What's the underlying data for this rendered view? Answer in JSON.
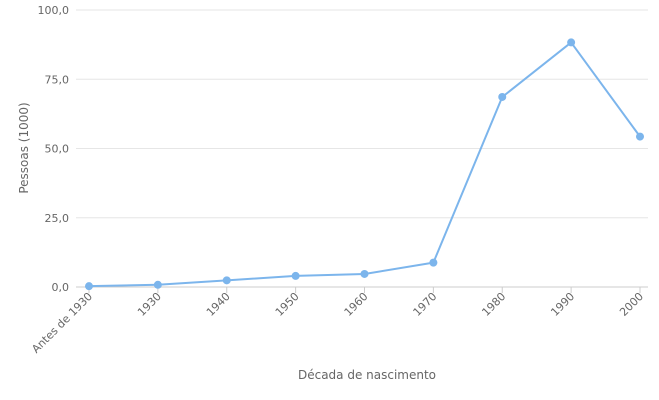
{
  "chart_data": {
    "type": "line",
    "title": "",
    "xlabel": "Década de nascimento",
    "ylabel": "Pessoas (1000)",
    "categories": [
      "Antes de 1930",
      "1930",
      "1940",
      "1950",
      "1960",
      "1970",
      "1980",
      "1990",
      "2000"
    ],
    "series": [
      {
        "values": [
          0.3,
          0.8,
          2.4,
          4.0,
          4.7,
          8.8,
          68.6,
          88.3,
          54.3
        ]
      }
    ],
    "ylim": [
      0,
      100
    ],
    "yticks": [
      0,
      25,
      50,
      75,
      100
    ],
    "ytick_labels": [
      "0,0",
      "25,0",
      "50,0",
      "75,0",
      "100,0"
    ],
    "grid": true,
    "legend": "none",
    "colors": {
      "series": "#7cb5ec",
      "grid": "#e6e6e6",
      "text": "#666666"
    }
  }
}
